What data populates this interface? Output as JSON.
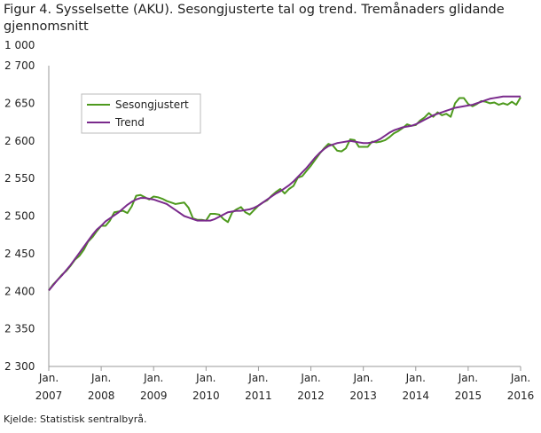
{
  "chart_data": {
    "type": "line",
    "title": "Figur 4. Sysselsette (AKU).  Sesongjusterte tal og trend. Tremånaders glidande gjennomsnitt",
    "y_unit_label": "1 000",
    "source": "Kjelde: Statistisk sentralbyrå.",
    "categories": [
      "Jan. 2007",
      null,
      null,
      null,
      null,
      null,
      null,
      null,
      null,
      null,
      null,
      null,
      "Jan. 2008",
      null,
      null,
      null,
      null,
      null,
      null,
      null,
      null,
      null,
      null,
      null,
      "Jan. 2009",
      null,
      null,
      null,
      null,
      null,
      null,
      null,
      null,
      null,
      null,
      null,
      "Jan. 2010",
      null,
      null,
      null,
      null,
      null,
      null,
      null,
      null,
      null,
      null,
      null,
      "Jan. 2011",
      null,
      null,
      null,
      null,
      null,
      null,
      null,
      null,
      null,
      null,
      null,
      "Jan. 2012",
      null,
      null,
      null,
      null,
      null,
      null,
      null,
      null,
      null,
      null,
      null,
      "Jan. 2013",
      null,
      null,
      null,
      null,
      null,
      null,
      null,
      null,
      null,
      null,
      null,
      "Jan. 2014",
      null,
      null,
      null,
      null,
      null,
      null,
      null,
      null,
      null,
      null,
      null,
      "Jan. 2015",
      null,
      null,
      null,
      null,
      null,
      null,
      null,
      null,
      null,
      null,
      null,
      "Jan. 2016"
    ],
    "series": [
      {
        "name": "Sesongjustert",
        "color": "#4e9a1e",
        "values": [
          2401,
          2409,
          2415,
          2422,
          2427,
          2434,
          2442,
          2447,
          2455,
          2466,
          2472,
          2480,
          2487,
          2487,
          2494,
          2505,
          2506,
          2507,
          2504,
          2513,
          2527,
          2528,
          2525,
          2522,
          2526,
          2525,
          2523,
          2520,
          2518,
          2516,
          2517,
          2518,
          2511,
          2497,
          2495,
          2495,
          2494,
          2503,
          2503,
          2502,
          2496,
          2492,
          2505,
          2509,
          2512,
          2505,
          2502,
          2508,
          2514,
          2518,
          2521,
          2527,
          2532,
          2536,
          2530,
          2536,
          2540,
          2551,
          2553,
          2560,
          2567,
          2575,
          2583,
          2590,
          2596,
          2594,
          2587,
          2586,
          2590,
          2602,
          2601,
          2592,
          2592,
          2592,
          2599,
          2598,
          2599,
          2601,
          2605,
          2610,
          2613,
          2617,
          2622,
          2620,
          2621,
          2627,
          2631,
          2637,
          2632,
          2638,
          2634,
          2636,
          2632,
          2650,
          2657,
          2657,
          2649,
          2646,
          2649,
          2653,
          2652,
          2650,
          2651,
          2648,
          2650,
          2648,
          2652,
          2648,
          2658
        ]
      },
      {
        "name": "Trend",
        "color": "#7a2a8c",
        "values": [
          2401,
          2408,
          2415,
          2421,
          2428,
          2435,
          2443,
          2451,
          2459,
          2467,
          2475,
          2482,
          2487,
          2493,
          2497,
          2501,
          2505,
          2510,
          2515,
          2519,
          2522,
          2524,
          2524,
          2523,
          2522,
          2520,
          2518,
          2516,
          2512,
          2508,
          2504,
          2500,
          2498,
          2496,
          2494,
          2494,
          2494,
          2494,
          2496,
          2499,
          2502,
          2505,
          2506,
          2507,
          2507,
          2508,
          2509,
          2511,
          2514,
          2518,
          2522,
          2526,
          2530,
          2533,
          2537,
          2541,
          2546,
          2552,
          2558,
          2564,
          2571,
          2578,
          2584,
          2589,
          2593,
          2595,
          2597,
          2598,
          2599,
          2600,
          2599,
          2598,
          2597,
          2597,
          2598,
          2600,
          2603,
          2607,
          2611,
          2614,
          2616,
          2618,
          2619,
          2620,
          2622,
          2625,
          2628,
          2631,
          2634,
          2636,
          2638,
          2640,
          2642,
          2644,
          2645,
          2646,
          2647,
          2648,
          2650,
          2652,
          2654,
          2656,
          2657,
          2658,
          2659,
          2659,
          2659,
          2659,
          2659
        ]
      }
    ],
    "ylim": [
      2300,
      2700
    ],
    "yticks": [
      {
        "value": 2300,
        "label": "2 300"
      },
      {
        "value": 2350,
        "label": "2 350"
      },
      {
        "value": 2400,
        "label": "2 400"
      },
      {
        "value": 2450,
        "label": "2 450"
      },
      {
        "value": 2500,
        "label": "2 500"
      },
      {
        "value": 2550,
        "label": "2 550"
      },
      {
        "value": 2600,
        "label": "2 600"
      },
      {
        "value": 2650,
        "label": "2 650"
      },
      {
        "value": 2700,
        "label": "2 700"
      }
    ],
    "grid": false,
    "legend": "upper left"
  }
}
